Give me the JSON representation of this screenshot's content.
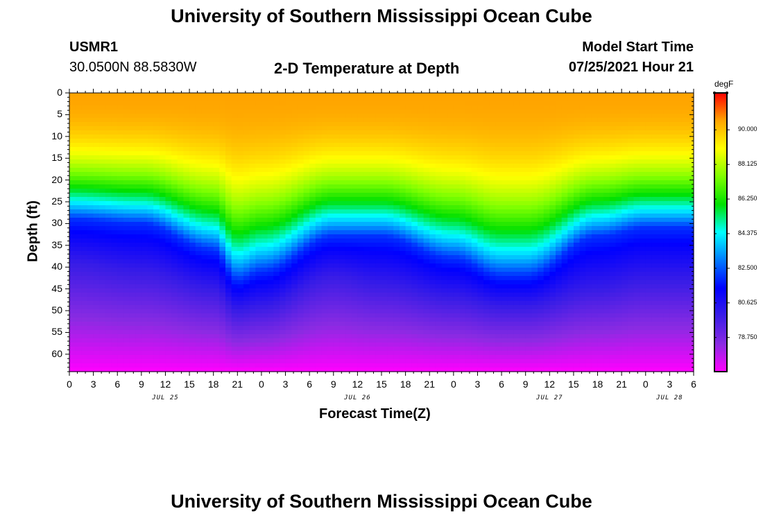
{
  "header": {
    "title": "University of Southern Mississippi Ocean Cube",
    "station": "USMR1",
    "coords": "30.0500N  88.5830W",
    "subtitle": "2-D Temperature at Depth",
    "model_label": "Model Start Time",
    "model_time": "07/25/2021 Hour 21"
  },
  "footer": {
    "title": "University of Southern Mississippi Ocean Cube"
  },
  "colors": {
    "palette": [
      "#ff00ff",
      "#8a2be2",
      "#3a1de6",
      "#0000ff",
      "#007bff",
      "#00ffff",
      "#00e000",
      "#7fff00",
      "#ffff00",
      "#ffa500",
      "#ff0000"
    ]
  },
  "chart_data": {
    "type": "heatmap",
    "title": "2-D Temperature at Depth",
    "xlabel": "Forecast Time(Z)",
    "ylabel": "Depth (ft)",
    "x_tick_labels": [
      "0",
      "3",
      "6",
      "9",
      "12",
      "15",
      "18",
      "21",
      "0",
      "3",
      "6",
      "9",
      "12",
      "15",
      "18",
      "21",
      "0",
      "3",
      "6",
      "9",
      "12",
      "15",
      "18",
      "21",
      "0",
      "3",
      "6"
    ],
    "date_labels": [
      {
        "label": "JUL 25",
        "hours": 12
      },
      {
        "label": "JUL 26",
        "hours": 36
      },
      {
        "label": "JUL 27",
        "hours": 60
      },
      {
        "label": "JUL 28",
        "hours": 75
      }
    ],
    "xlim_hours": [
      0,
      78
    ],
    "y_ticks": [
      0,
      5,
      10,
      15,
      20,
      25,
      30,
      35,
      40,
      45,
      50,
      55,
      60
    ],
    "ylim_ft": [
      0,
      64
    ],
    "colorbar": {
      "unit": "degF",
      "min": 76.9,
      "max": 92.0,
      "tick_labels": [
        "90.000",
        "88.125",
        "86.250",
        "84.375",
        "82.500",
        "80.625",
        "78.750"
      ]
    },
    "surface_temp_degF": 90.5,
    "isotherms_depth_ft": [
      {
        "hours": 0,
        "temp_82": 29,
        "temp_80": 39
      },
      {
        "hours": 9,
        "temp_82": 30,
        "temp_80": 41
      },
      {
        "hours": 18,
        "temp_82": 36,
        "temp_80": 45
      },
      {
        "hours": 21,
        "temp_82": 43,
        "temp_80": 50
      },
      {
        "hours": 24,
        "temp_82": 41,
        "temp_80": 49
      },
      {
        "hours": 33,
        "temp_82": 33,
        "temp_80": 42
      },
      {
        "hours": 39,
        "temp_82": 33,
        "temp_80": 44
      },
      {
        "hours": 48,
        "temp_82": 38,
        "temp_80": 47
      },
      {
        "hours": 54,
        "temp_82": 42,
        "temp_80": 49
      },
      {
        "hours": 57,
        "temp_82": 42,
        "temp_80": 49
      },
      {
        "hours": 66,
        "temp_82": 33,
        "temp_80": 45
      },
      {
        "hours": 72,
        "temp_82": 31,
        "temp_80": 43
      },
      {
        "hours": 78,
        "temp_82": 31,
        "temp_80": 43
      }
    ]
  }
}
